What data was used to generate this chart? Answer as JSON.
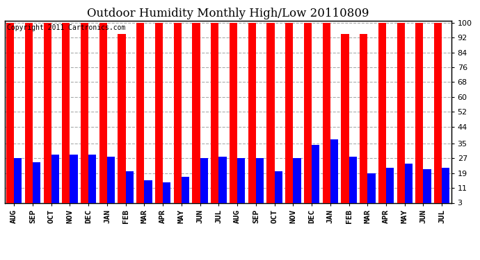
{
  "title": "Outdoor Humidity Monthly High/Low 20110809",
  "copyright": "Copyright 2011 Cartronics.com",
  "months": [
    "AUG",
    "SEP",
    "OCT",
    "NOV",
    "DEC",
    "JAN",
    "FEB",
    "MAR",
    "APR",
    "MAY",
    "JUN",
    "JUL",
    "AUG",
    "SEP",
    "OCT",
    "NOV",
    "DEC",
    "JAN",
    "FEB",
    "MAR",
    "APR",
    "MAY",
    "JUN",
    "JUL"
  ],
  "highs": [
    100,
    100,
    100,
    100,
    100,
    100,
    94,
    100,
    100,
    100,
    100,
    100,
    100,
    100,
    100,
    100,
    100,
    100,
    94,
    94,
    100,
    100,
    100,
    100
  ],
  "lows": [
    27,
    25,
    29,
    29,
    29,
    28,
    20,
    15,
    14,
    17,
    27,
    28,
    27,
    27,
    20,
    27,
    34,
    37,
    28,
    19,
    22,
    24,
    21,
    22
  ],
  "high_color": "#ff0000",
  "low_color": "#0000ff",
  "bg_color": "#ffffff",
  "plot_bg": "#ffffff",
  "yticks": [
    3,
    11,
    19,
    27,
    35,
    44,
    52,
    60,
    68,
    76,
    84,
    92,
    100
  ],
  "ylim_min": 3,
  "ylim_max": 101,
  "bar_width": 0.42,
  "title_fontsize": 12,
  "tick_fontsize": 8,
  "copyright_fontsize": 7,
  "grid_color": "#aaaaaa",
  "grid_style": "--"
}
